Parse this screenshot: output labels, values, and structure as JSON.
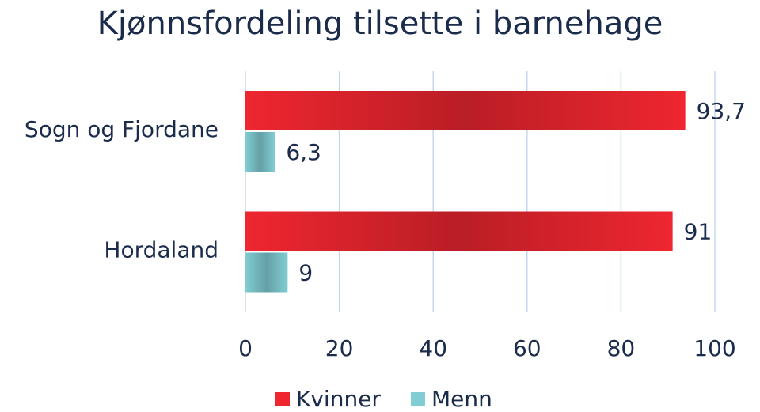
{
  "chart_data": {
    "type": "hbar",
    "title": "Kjønnsfordeling tilsette i barnehage",
    "categories": [
      "Sogn og Fjordane",
      "Hordaland"
    ],
    "series": [
      {
        "name": "Kvinner",
        "color": "#ee2630",
        "values": [
          93.7,
          91
        ],
        "value_labels": [
          "93,7",
          "91"
        ]
      },
      {
        "name": "Menn",
        "color": "#80cdd3",
        "values": [
          6.3,
          9
        ],
        "value_labels": [
          "6,3",
          "9"
        ]
      }
    ],
    "xlim": [
      0,
      100
    ],
    "xticks": [
      0,
      20,
      40,
      60,
      80,
      100
    ],
    "grid": true,
    "legend": "bottom"
  }
}
